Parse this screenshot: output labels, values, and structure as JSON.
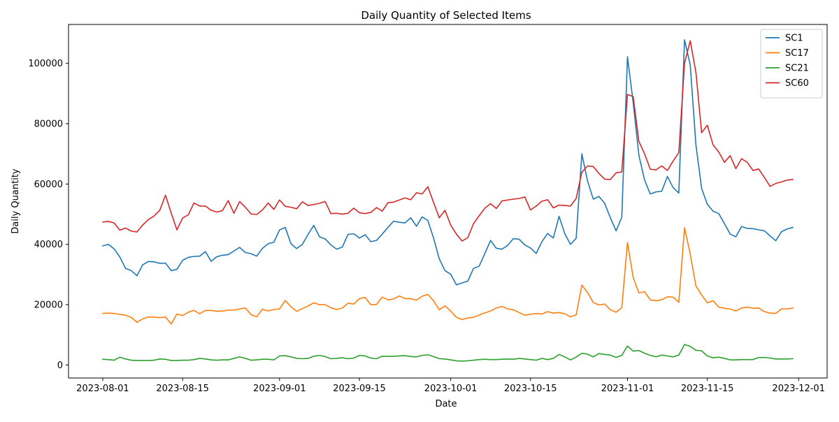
{
  "chart_data": {
    "type": "line",
    "title": "Daily Quantity of Selected Items",
    "xlabel": "Date",
    "ylabel": "Daily Quantity",
    "x_start": "2023-08-01",
    "x_ticks": [
      "2023-08-01",
      "2023-08-15",
      "2023-09-01",
      "2023-09-15",
      "2023-10-01",
      "2023-10-15",
      "2023-11-01",
      "2023-11-15",
      "2023-12-01"
    ],
    "y_ticks": [
      0,
      20000,
      40000,
      60000,
      80000,
      100000
    ],
    "xlim": [
      "2023-07-26",
      "2023-12-06"
    ],
    "ylim": [
      -4300,
      112900
    ],
    "grid": false,
    "legend_position": "top-right",
    "series": [
      {
        "name": "SC1",
        "color": "#1f77b4",
        "values": [
          39500,
          40000,
          38500,
          35800,
          32000,
          31300,
          29600,
          33200,
          34300,
          34200,
          33700,
          33800,
          31300,
          31700,
          34700,
          35700,
          36000,
          36100,
          37600,
          34400,
          35900,
          36400,
          36600,
          37800,
          39000,
          37300,
          36900,
          36100,
          38700,
          40200,
          40700,
          44800,
          45600,
          40200,
          38600,
          40000,
          43300,
          46300,
          42500,
          41800,
          39800,
          38400,
          39100,
          43300,
          43500,
          42100,
          43200,
          40900,
          41300,
          43400,
          45600,
          47700,
          47300,
          47100,
          48800,
          46000,
          49100,
          47900,
          42100,
          35200,
          31300,
          30100,
          26600,
          27200,
          27800,
          32000,
          32800,
          37000,
          41300,
          38700,
          38400,
          39700,
          41900,
          41700,
          39800,
          38800,
          37000,
          40900,
          43600,
          42100,
          49300,
          43600,
          40000,
          42000,
          70000,
          61000,
          55000,
          55900,
          53600,
          48800,
          44500,
          49000,
          102200,
          87000,
          69500,
          61300,
          56700,
          57400,
          57600,
          62500,
          58800,
          57000,
          107800,
          99500,
          73000,
          58500,
          53300,
          51000,
          50200,
          46900,
          43400,
          42500,
          45900,
          45300,
          45200,
          44800,
          44500,
          42800,
          41200,
          44200,
          45100,
          45600
        ]
      },
      {
        "name": "SC17",
        "color": "#ff7f0e",
        "values": [
          17100,
          17200,
          17100,
          16800,
          16500,
          15800,
          14200,
          15300,
          15900,
          15900,
          15700,
          15900,
          13600,
          16900,
          16400,
          17500,
          18100,
          17000,
          18100,
          18100,
          17800,
          17900,
          18200,
          18200,
          18600,
          18900,
          16700,
          16000,
          18500,
          17900,
          18400,
          18600,
          21400,
          19300,
          17800,
          18700,
          19600,
          20600,
          20000,
          20000,
          19000,
          18400,
          18900,
          20500,
          20200,
          22000,
          22400,
          20000,
          20100,
          22500,
          21600,
          21900,
          22900,
          22000,
          22000,
          21500,
          22800,
          23400,
          21300,
          18300,
          19600,
          17900,
          15800,
          15100,
          15600,
          15800,
          16600,
          17300,
          17900,
          18900,
          19400,
          18600,
          18300,
          17400,
          16500,
          16800,
          17100,
          16900,
          17700,
          17200,
          17400,
          17000,
          16000,
          16600,
          26500,
          24000,
          20700,
          19900,
          20200,
          18300,
          17500,
          19000,
          40600,
          29000,
          23900,
          24300,
          21600,
          21300,
          21600,
          22600,
          22500,
          20800,
          45500,
          36800,
          26200,
          23200,
          20600,
          21300,
          19200,
          18800,
          18600,
          17900,
          18900,
          19200,
          18800,
          18900,
          17700,
          17200,
          17100,
          18600,
          18600,
          18900
        ]
      },
      {
        "name": "SC21",
        "color": "#2ca02c",
        "values": [
          1900,
          1800,
          1600,
          2600,
          2000,
          1600,
          1500,
          1500,
          1500,
          1600,
          2000,
          1900,
          1500,
          1500,
          1600,
          1600,
          1800,
          2200,
          2000,
          1700,
          1600,
          1700,
          1700,
          2200,
          2700,
          2200,
          1600,
          1700,
          1900,
          1900,
          1700,
          3000,
          3100,
          2700,
          2200,
          2100,
          2200,
          2900,
          3200,
          2800,
          2100,
          2200,
          2400,
          2100,
          2300,
          3200,
          3000,
          2300,
          2100,
          2900,
          2900,
          2900,
          3000,
          3100,
          2800,
          2700,
          3200,
          3400,
          2800,
          2100,
          2000,
          1700,
          1400,
          1300,
          1400,
          1600,
          1800,
          1900,
          1800,
          1800,
          1900,
          2000,
          1900,
          2200,
          2000,
          1800,
          1600,
          2200,
          1800,
          2200,
          3500,
          2700,
          1700,
          2600,
          3900,
          3600,
          2700,
          3800,
          3500,
          3300,
          2500,
          3200,
          6300,
          4600,
          4800,
          3900,
          3200,
          2700,
          3300,
          3000,
          2700,
          3300,
          6800,
          6200,
          4900,
          4700,
          3000,
          2400,
          2600,
          2200,
          1700,
          1700,
          1800,
          1800,
          1800,
          2500,
          2500,
          2300,
          2000,
          2000,
          2000,
          2100
        ]
      },
      {
        "name": "SC60",
        "color": "#d62728",
        "values": [
          47400,
          47600,
          47100,
          44700,
          45400,
          44400,
          44100,
          46400,
          48200,
          49400,
          51300,
          56300,
          50400,
          44800,
          48700,
          49800,
          53700,
          52700,
          52700,
          51300,
          50700,
          51200,
          54500,
          50300,
          54200,
          52300,
          50100,
          49900,
          51400,
          53700,
          51600,
          54700,
          52600,
          52300,
          51800,
          54100,
          52900,
          53200,
          53600,
          54200,
          50200,
          50300,
          50000,
          50300,
          52000,
          50500,
          50200,
          50600,
          52200,
          51000,
          53800,
          54000,
          54700,
          55400,
          54800,
          57100,
          56700,
          59100,
          53900,
          48800,
          51300,
          46400,
          43400,
          41100,
          42200,
          46800,
          49500,
          52000,
          53500,
          51900,
          54400,
          54700,
          55000,
          55200,
          55700,
          51400,
          52700,
          54300,
          54800,
          52100,
          53000,
          52900,
          52700,
          55200,
          63900,
          66000,
          65800,
          63500,
          61600,
          61500,
          63700,
          64000,
          89700,
          89000,
          74100,
          70000,
          64900,
          64700,
          66000,
          64500,
          67600,
          70400,
          100000,
          107500,
          97000,
          77000,
          79500,
          73000,
          70600,
          67200,
          69400,
          65100,
          68400,
          67200,
          64500,
          65000,
          62200,
          59200,
          60200,
          60700,
          61300,
          61500
        ]
      }
    ]
  }
}
